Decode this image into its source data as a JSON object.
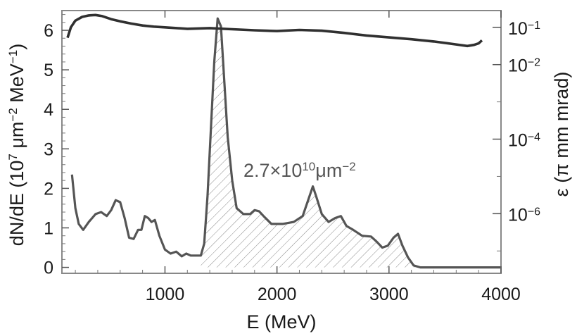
{
  "chart_data": {
    "type": "line",
    "title": "",
    "xlabel": "E (MeV)",
    "ylabel": {
      "prefix": "dN/dE (10",
      "exp1": "7",
      "mid1": " μm",
      "exp2": "−2",
      "mid2": " MeV",
      "exp3": "−1",
      "suffix": ")"
    },
    "y2label": "ε (π mm mrad)",
    "xlim": [
      80,
      4000
    ],
    "ylim": [
      -0.15,
      6.5
    ],
    "y2_scale": "log",
    "y2lim_exp": [
      -7.6,
      -0.55
    ],
    "grid": false,
    "x_ticks": [
      1000,
      2000,
      3000,
      4000
    ],
    "x_tick_labels": [
      "1000",
      "2000",
      "3000",
      "4000"
    ],
    "y_ticks": [
      0,
      1,
      2,
      3,
      4,
      5,
      6
    ],
    "y_tick_labels": [
      "0",
      "1",
      "2",
      "3",
      "4",
      "5",
      "6"
    ],
    "y2_ticks": [
      {
        "exp": -1,
        "base": "10",
        "sup": "−1"
      },
      {
        "exp": -2,
        "base": "10",
        "sup": "−2"
      },
      {
        "exp": -4,
        "base": "10",
        "sup": "−4"
      },
      {
        "exp": -6,
        "base": "10",
        "sup": "−6"
      }
    ],
    "annotation": {
      "base": "2.7×10",
      "sup": "10",
      "unit": "μm",
      "unit_sup": "−2"
    },
    "series": [
      {
        "role": "spectrum",
        "axis": "left",
        "color": "#555555",
        "hatched_fill": true,
        "hatch_range": [
          1320,
          3250
        ],
        "points": [
          [
            170,
            2.35
          ],
          [
            200,
            1.5
          ],
          [
            230,
            1.1
          ],
          [
            270,
            0.95
          ],
          [
            320,
            1.15
          ],
          [
            380,
            1.35
          ],
          [
            430,
            1.4
          ],
          [
            480,
            1.3
          ],
          [
            520,
            1.45
          ],
          [
            560,
            1.7
          ],
          [
            600,
            1.65
          ],
          [
            640,
            1.25
          ],
          [
            680,
            0.75
          ],
          [
            720,
            0.72
          ],
          [
            760,
            0.95
          ],
          [
            790,
            0.95
          ],
          [
            820,
            1.3
          ],
          [
            850,
            1.25
          ],
          [
            880,
            1.15
          ],
          [
            910,
            1.2
          ],
          [
            950,
            0.8
          ],
          [
            1000,
            0.45
          ],
          [
            1050,
            0.35
          ],
          [
            1100,
            0.4
          ],
          [
            1150,
            0.28
          ],
          [
            1190,
            0.35
          ],
          [
            1230,
            0.3
          ],
          [
            1280,
            0.3
          ],
          [
            1320,
            0.3
          ],
          [
            1350,
            0.6
          ],
          [
            1380,
            1.8
          ],
          [
            1410,
            3.5
          ],
          [
            1440,
            5.2
          ],
          [
            1470,
            6.3
          ],
          [
            1500,
            6.1
          ],
          [
            1530,
            4.7
          ],
          [
            1560,
            3.3
          ],
          [
            1600,
            2.2
          ],
          [
            1640,
            1.5
          ],
          [
            1700,
            1.35
          ],
          [
            1760,
            1.35
          ],
          [
            1800,
            1.45
          ],
          [
            1840,
            1.42
          ],
          [
            1880,
            1.3
          ],
          [
            1950,
            1.1
          ],
          [
            2050,
            1.1
          ],
          [
            2150,
            1.15
          ],
          [
            2230,
            1.3
          ],
          [
            2290,
            1.8
          ],
          [
            2320,
            2.05
          ],
          [
            2350,
            1.8
          ],
          [
            2400,
            1.35
          ],
          [
            2460,
            1.15
          ],
          [
            2520,
            1.25
          ],
          [
            2570,
            1.3
          ],
          [
            2620,
            1.05
          ],
          [
            2680,
            0.95
          ],
          [
            2760,
            0.8
          ],
          [
            2840,
            0.78
          ],
          [
            2890,
            0.65
          ],
          [
            2940,
            0.5
          ],
          [
            2990,
            0.55
          ],
          [
            3040,
            0.75
          ],
          [
            3080,
            0.85
          ],
          [
            3120,
            0.55
          ],
          [
            3170,
            0.25
          ],
          [
            3220,
            0.05
          ],
          [
            3280,
            0.0
          ],
          [
            3400,
            0.0
          ],
          [
            4000,
            0.0
          ]
        ]
      },
      {
        "role": "emittance",
        "axis": "right",
        "color": "#303030",
        "hatched_fill": false,
        "points": [
          [
            130,
            -1.28
          ],
          [
            160,
            -1.0
          ],
          [
            200,
            -0.82
          ],
          [
            260,
            -0.72
          ],
          [
            320,
            -0.68
          ],
          [
            380,
            -0.67
          ],
          [
            440,
            -0.7
          ],
          [
            520,
            -0.78
          ],
          [
            600,
            -0.84
          ],
          [
            700,
            -0.9
          ],
          [
            800,
            -0.95
          ],
          [
            900,
            -0.98
          ],
          [
            1000,
            -1.0
          ],
          [
            1200,
            -1.04
          ],
          [
            1400,
            -1.02
          ],
          [
            1600,
            -1.05
          ],
          [
            1800,
            -1.08
          ],
          [
            2000,
            -1.1
          ],
          [
            2200,
            -1.07
          ],
          [
            2400,
            -1.09
          ],
          [
            2600,
            -1.15
          ],
          [
            2800,
            -1.22
          ],
          [
            3000,
            -1.27
          ],
          [
            3200,
            -1.32
          ],
          [
            3400,
            -1.38
          ],
          [
            3600,
            -1.46
          ],
          [
            3700,
            -1.5
          ],
          [
            3760,
            -1.47
          ],
          [
            3800,
            -1.43
          ],
          [
            3830,
            -1.35
          ]
        ]
      }
    ]
  }
}
